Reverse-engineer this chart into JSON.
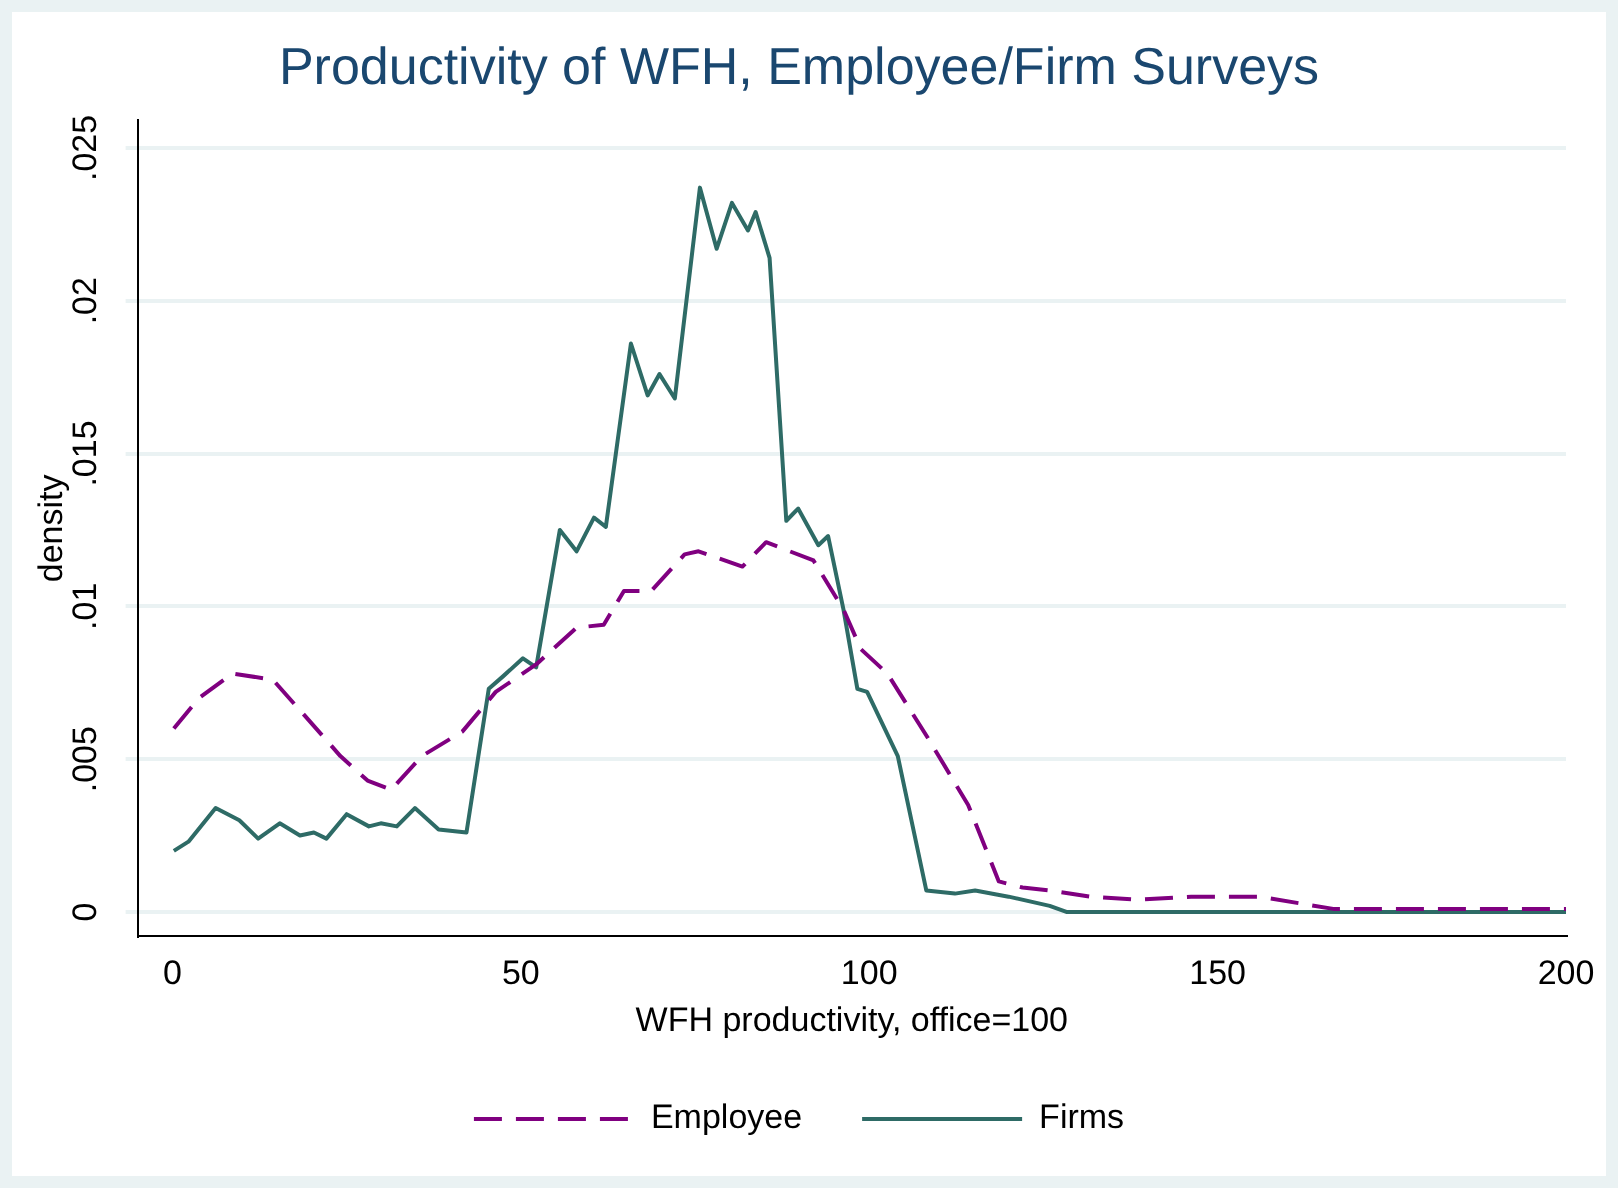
{
  "chart_data": {
    "type": "line",
    "title": "Productivity of WFH, Employee/Firm Surveys",
    "xlabel": "WFH productivity, office=100",
    "ylabel": "density",
    "xlim": [
      -5,
      200
    ],
    "xticks": [
      0,
      50,
      100,
      150,
      200
    ],
    "ylim": [
      -0.0008,
      0.0259
    ],
    "yticks": [
      0,
      {
        "value": 0.005,
        "label": ".005"
      },
      {
        "value": 0.01,
        "label": ".01"
      },
      {
        "value": 0.015,
        "label": ".015"
      },
      {
        "value": 0.02,
        "label": ".02"
      },
      {
        "value": 0.025,
        "label": ".025"
      }
    ],
    "grid": "y",
    "legend": "bottom",
    "marker": "none",
    "series": [
      {
        "name": "Employee",
        "color": "#800080",
        "line_style": "dashed",
        "x": [
          0.2,
          3.8,
          8.6,
          14.4,
          18.3,
          24.1,
          28,
          31.4,
          35.8,
          41.6,
          46.4,
          52.2,
          58,
          61.9,
          64.8,
          68.7,
          73.5,
          75.5,
          81.8,
          85.2,
          88.6,
          92,
          96.3,
          98.8,
          102.6,
          108.4,
          114.2,
          118.6,
          122,
          125.9,
          131.7,
          138.5,
          146.2,
          156,
          166.6,
          175.3,
          200
        ],
        "values": [
          0.006,
          0.007,
          0.0078,
          0.0076,
          0.0066,
          0.0051,
          0.0043,
          0.004,
          0.0051,
          0.0059,
          0.0072,
          0.0081,
          0.0093,
          0.0094,
          0.0105,
          0.0105,
          0.0117,
          0.0118,
          0.0113,
          0.0121,
          0.0118,
          0.0115,
          0.0099,
          0.0086,
          0.0078,
          0.0057,
          0.0035,
          0.001,
          0.0008,
          0.0007,
          0.0005,
          0.0004,
          0.0005,
          0.0005,
          0.0001,
          0.0001,
          0.0001
        ]
      },
      {
        "name": "Firms",
        "color": "#2e6b66",
        "line_style": "solid",
        "x": [
          0.2,
          2.3,
          6.2,
          9.6,
          12.3,
          15.4,
          18.3,
          20.3,
          22.1,
          25,
          28.2,
          29.9,
          32.2,
          34.8,
          38.2,
          42.2,
          45.4,
          47.4,
          50.3,
          52.2,
          55.6,
          58,
          60.5,
          62.2,
          65.8,
          68.2,
          69.9,
          72.1,
          75.7,
          78.1,
          80.3,
          82.6,
          83.7,
          85.7,
          88.1,
          89.8,
          92.7,
          94.1,
          96.3,
          98.3,
          99.7,
          104.1,
          108.2,
          112.3,
          115.2,
          120,
          125.9,
          128.3,
          200
        ],
        "values": [
          0.002,
          0.0023,
          0.0034,
          0.003,
          0.0024,
          0.0029,
          0.0025,
          0.0026,
          0.0024,
          0.0032,
          0.0028,
          0.0029,
          0.0028,
          0.0034,
          0.0027,
          0.0026,
          0.0073,
          0.0077,
          0.0083,
          0.008,
          0.0125,
          0.0118,
          0.0129,
          0.0126,
          0.0186,
          0.0169,
          0.0176,
          0.0168,
          0.0237,
          0.0217,
          0.0232,
          0.0223,
          0.0229,
          0.0214,
          0.0128,
          0.0132,
          0.012,
          0.0123,
          0.0099,
          0.0073,
          0.0072,
          0.0051,
          0.0007,
          0.0006,
          0.0007,
          0.0005,
          0.0002,
          0,
          0
        ]
      }
    ]
  }
}
